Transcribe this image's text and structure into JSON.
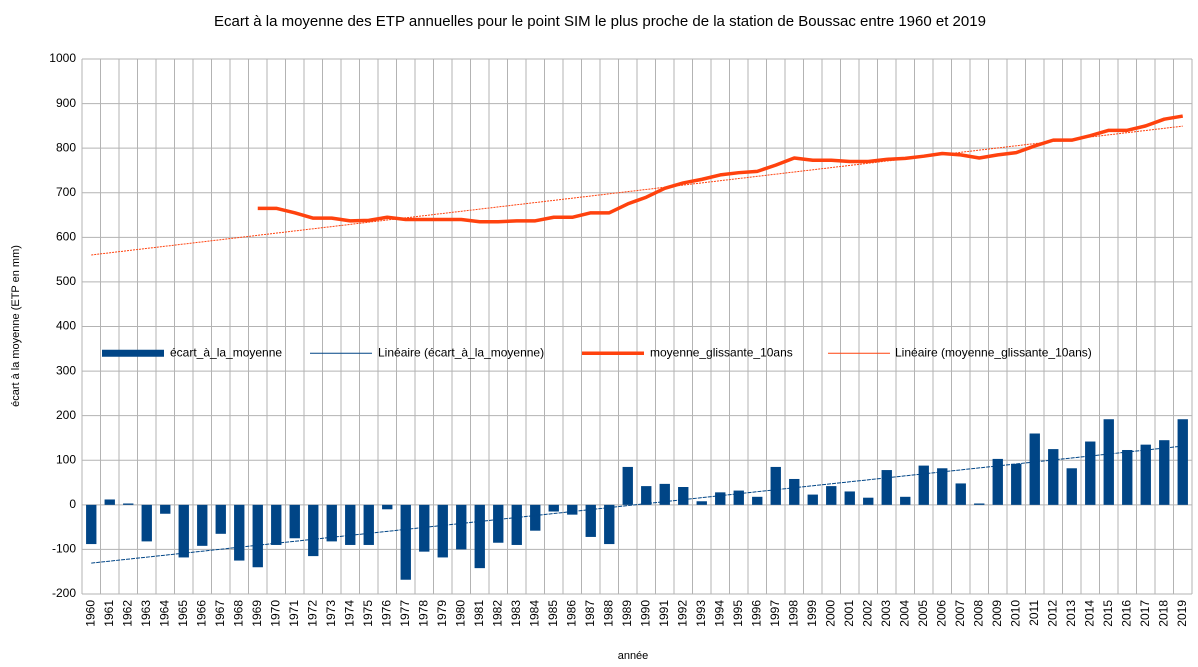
{
  "chart_data": {
    "type": "bar-line",
    "title": "Ecart à la moyenne des ETP annuelles pour le point SIM le plus proche de la station de Boussac entre 1960 et 2019",
    "x_label": "année",
    "y_label": "écart à la moyenne (ETP en mm)",
    "categories": [
      "1960",
      "1961",
      "1962",
      "1963",
      "1964",
      "1965",
      "1966",
      "1967",
      "1968",
      "1969",
      "1970",
      "1971",
      "1972",
      "1973",
      "1974",
      "1975",
      "1976",
      "1977",
      "1978",
      "1979",
      "1980",
      "1981",
      "1982",
      "1983",
      "1984",
      "1985",
      "1986",
      "1987",
      "1988",
      "1989",
      "1990",
      "1991",
      "1992",
      "1993",
      "1994",
      "1995",
      "1996",
      "1997",
      "1998",
      "1999",
      "2000",
      "2001",
      "2002",
      "2003",
      "2004",
      "2005",
      "2006",
      "2007",
      "2008",
      "2009",
      "2010",
      "2011",
      "2012",
      "2013",
      "2014",
      "2015",
      "2016",
      "2017",
      "2018",
      "2019"
    ],
    "series": [
      {
        "name": "écart_à_la_moyenne",
        "kind": "bar",
        "color": "#004586",
        "trendline": {
          "name": "Linéaire (écart_à_la_moyenne)",
          "color": "#004586"
        },
        "values": [
          -88,
          12,
          3,
          -82,
          -20,
          -118,
          -92,
          -65,
          -125,
          -140,
          -90,
          -75,
          -115,
          -82,
          -90,
          -90,
          -10,
          -168,
          -105,
          -118,
          -100,
          -142,
          -85,
          -90,
          -58,
          -15,
          -22,
          -72,
          -88,
          85,
          42,
          47,
          40,
          8,
          28,
          32,
          18,
          85,
          58,
          23,
          42,
          30,
          16,
          78,
          18,
          88,
          82,
          48,
          3,
          103,
          92,
          160,
          125,
          82,
          142,
          192,
          123,
          135,
          145,
          192
        ]
      },
      {
        "name": "moyenne_glissante_10ans",
        "kind": "line",
        "color": "#ff420e",
        "trendline": {
          "name": "Linéaire (moyenne_glissante_10ans)",
          "color": "#ff420e"
        },
        "values": [
          null,
          null,
          null,
          null,
          null,
          null,
          null,
          null,
          null,
          665,
          665,
          655,
          643,
          643,
          637,
          638,
          645,
          640,
          640,
          640,
          640,
          635,
          635,
          637,
          637,
          645,
          645,
          655,
          655,
          675,
          690,
          710,
          722,
          730,
          740,
          745,
          748,
          762,
          778,
          773,
          773,
          770,
          770,
          775,
          777,
          782,
          788,
          785,
          778,
          785,
          790,
          805,
          818,
          818,
          828,
          840,
          840,
          850,
          865,
          872
        ]
      }
    ],
    "ylim": [
      -200,
      1000
    ],
    "yticks": [
      -200,
      -100,
      0,
      100,
      200,
      300,
      400,
      500,
      600,
      700,
      800,
      900,
      1000
    ],
    "grid": true
  }
}
